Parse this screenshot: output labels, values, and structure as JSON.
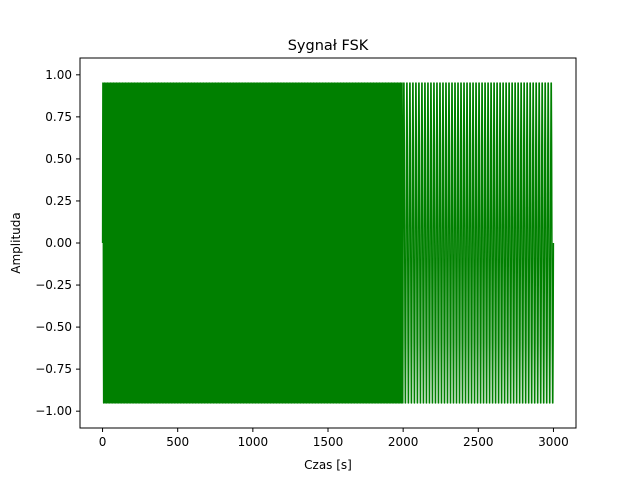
{
  "chart_data": {
    "type": "line",
    "title": "Sygnał FSK",
    "xlabel": "Czas [s]",
    "ylabel": "Amplituda",
    "xlim": [
      -150,
      3150
    ],
    "ylim": [
      -1.1,
      1.1
    ],
    "x_ticks": [
      0,
      500,
      1000,
      1500,
      2000,
      2500,
      3000
    ],
    "x_tick_labels": [
      "0",
      "500",
      "1000",
      "1500",
      "2000",
      "2500",
      "3000"
    ],
    "y_ticks": [
      1.0,
      0.75,
      0.5,
      0.25,
      0.0,
      -0.25,
      -0.5,
      -0.75,
      -1.0
    ],
    "y_tick_labels": [
      "1.00",
      "0.75",
      "0.50",
      "0.25",
      "0.00",
      "−0.25",
      "−0.50",
      "−0.75",
      "−1.00"
    ],
    "grid": false,
    "series": [
      {
        "color": "#008000",
        "signal": "sin",
        "amplitude": 1.0,
        "x_start": 0,
        "x_end": 3000,
        "segments": [
          {
            "x_start": 0,
            "x_end": 2000,
            "cycles": 200
          },
          {
            "x_start": 2000,
            "x_end": 3000,
            "cycles": 50
          }
        ]
      }
    ]
  }
}
